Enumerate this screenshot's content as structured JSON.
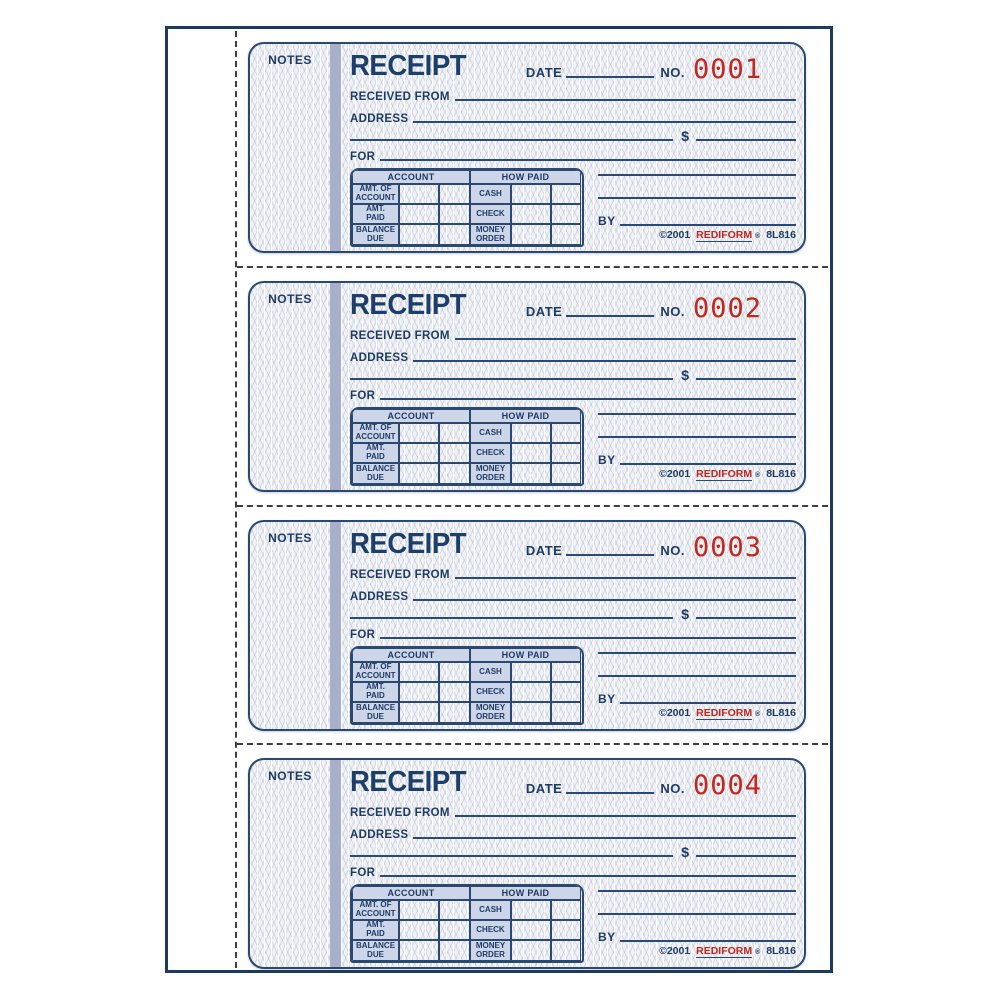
{
  "product": {
    "labels": {
      "notes": "NOTES",
      "title": "RECEIPT",
      "date": "DATE",
      "no": "NO.",
      "received_from": "RECEIVED FROM",
      "address": "ADDRESS",
      "currency": "$",
      "for": "FOR",
      "by": "BY"
    },
    "table": {
      "headers": {
        "account": "ACCOUNT",
        "how_paid": "HOW PAID"
      },
      "account_rows": [
        "AMT. OF\nACCOUNT",
        "AMT.\nPAID",
        "BALANCE\nDUE"
      ],
      "how_paid_rows": [
        "CASH",
        "CHECK",
        "MONEY\nORDER"
      ]
    },
    "footer": {
      "copyright": "©2001",
      "brand": "REDIFORM",
      "reg_mark": "®",
      "form_number": "8L816"
    },
    "receipts": [
      {
        "number": "0001"
      },
      {
        "number": "0002"
      },
      {
        "number": "0003"
      },
      {
        "number": "0004"
      }
    ],
    "colors": {
      "navy_ink": "#1e3b66",
      "receipt_number_red": "#c3271e",
      "brand_red": "#c3271e",
      "table_shade_blue": "#cdd6e8",
      "stub_bar_blue": "#a8afca",
      "page_border_navy": "#1f3a5f"
    }
  }
}
